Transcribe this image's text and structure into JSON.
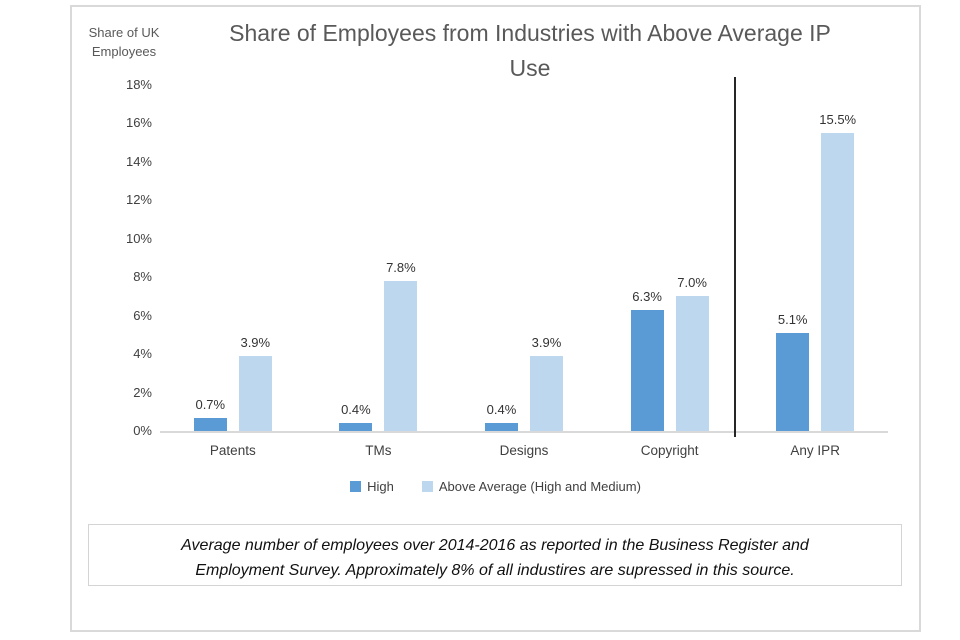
{
  "chart_data": {
    "type": "bar",
    "title": "Share of Employees from Industries with Above Average IP Use",
    "title_lines": [
      "Share of Employees from Industries with Above Average IP",
      "Use"
    ],
    "ylabel": "Share of UK Employees",
    "ylabel_lines": [
      "Share of UK",
      "Employees"
    ],
    "categories": [
      "Patents",
      "TMs",
      "Designs",
      "Copyright",
      "Any IPR"
    ],
    "series": [
      {
        "name": "High",
        "color": "#5b9bd5",
        "values": [
          0.7,
          0.4,
          0.4,
          6.3,
          5.1
        ]
      },
      {
        "name": "Above Average (High and Medium)",
        "color": "#bdd7ee",
        "values": [
          3.9,
          7.8,
          3.9,
          7.0,
          15.5
        ]
      }
    ],
    "data_label_format": "0.0%",
    "ylim": [
      0,
      18
    ],
    "y_tick_step": 2,
    "y_ticks": [
      "18%",
      "16%",
      "14%",
      "12%",
      "10%",
      "8%",
      "6%",
      "4%",
      "2%",
      "0%"
    ],
    "grid": false,
    "legend_position": "bottom",
    "separator_before_category": "Any IPR",
    "separator_color": "#262626",
    "axis_color": "#d9d9d9"
  },
  "footnote": {
    "lines": [
      "Average number of employees over 2014-2016 as reported in the Business Register and",
      "Employment Survey. Approximately 8% of all industires are supressed in this source."
    ]
  }
}
